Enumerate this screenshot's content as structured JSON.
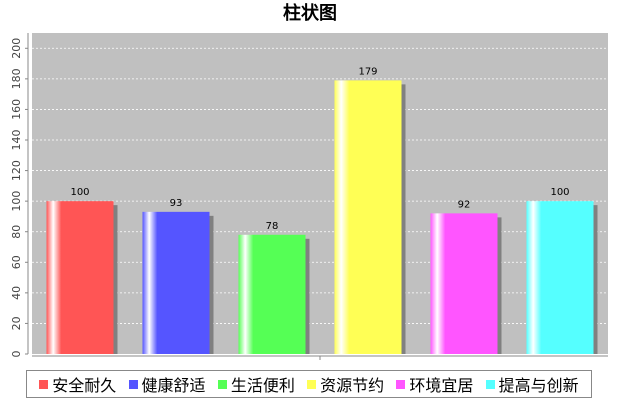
{
  "chart_data": {
    "type": "bar",
    "title": "柱状图",
    "xlabel": "",
    "ylabel": "",
    "categories": [
      "安全耐久",
      "健康舒适",
      "生活便利",
      "资源节约",
      "环境宜居",
      "提高与创新"
    ],
    "values": [
      100,
      93,
      78,
      179,
      92,
      100
    ],
    "data_labels": [
      "100",
      "93",
      "78",
      "179",
      "92",
      "100"
    ],
    "ylim": [
      0,
      210
    ],
    "yticks": [
      0,
      20,
      40,
      60,
      80,
      100,
      120,
      140,
      160,
      180,
      200
    ],
    "ytick_labels": [
      "0",
      "20",
      "40",
      "60",
      "80",
      "100",
      "120",
      "140",
      "160",
      "180",
      "200"
    ],
    "grid": true,
    "legend_position": "bottom",
    "colors": [
      "#ff5555",
      "#5555ff",
      "#55ff55",
      "#ffff55",
      "#ff55ff",
      "#55ffff"
    ],
    "plot_background": "#c0c0c0"
  }
}
